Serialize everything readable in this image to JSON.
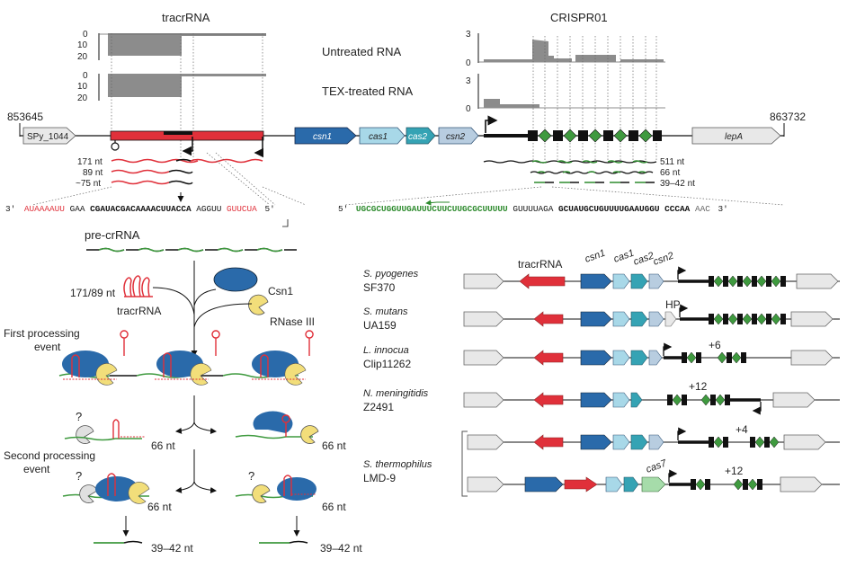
{
  "header": {
    "tracr_title": "tracrRNA",
    "crispr_title": "CRISPR01",
    "untreated": "Untreated RNA",
    "tex": "TEX-treated RNA"
  },
  "tracks": {
    "left_ticks": [
      "0",
      "10",
      "20"
    ],
    "right_ticks": [
      "3",
      "0"
    ]
  },
  "locus": {
    "coord_left": "853645",
    "coord_right": "863732",
    "genes": {
      "spy": "SPy_1044",
      "csn1": "csn1",
      "cas1": "cas1",
      "cas2": "cas2",
      "csn2": "csn2",
      "lepA": "lepA"
    },
    "tracr_sizes": [
      "171 nt",
      "89 nt",
      "~75 nt"
    ],
    "cr_sizes": [
      "511 nt",
      "66 nt",
      "39–42 nt"
    ]
  },
  "sequences": {
    "left_prime3": "3′",
    "left_red": "AUAAAAUU",
    "left_plain": "GAA",
    "left_bold": "CGAUACGACAAAACUUACCA",
    "left_tail_black": "AGGUU",
    "left_tail_red": "GUUCUA",
    "left_prime5": "5′",
    "right_prime5": "5′",
    "right_green": "UGCGCUGGUUGAUUUCUUCUUGCGCUUUUU",
    "right_plain": "GUUUUAGA",
    "right_bold": "GCUAUGCUGUUUUGAAUGGU",
    "right_plain2": "CCCAA",
    "right_end": "AAC",
    "right_prime3": "3′"
  },
  "pathway": {
    "pre_crrna": "pre-crRNA",
    "tracr_label_a": "171/89 nt",
    "tracr_label_b": "tracrRNA",
    "csn1": "Csn1",
    "rnase": "RNase III",
    "first_a": "First processing",
    "first_b": "event",
    "second_a": "Second processing",
    "second_b": "event",
    "q": "?",
    "n66": "66 nt",
    "n3942": "39–42 nt"
  },
  "orgs": {
    "header": {
      "tracr": "tracrRNA",
      "csn1": "csn1",
      "cas1": "cas1",
      "cas2": "cas2",
      "csn2": "csn2"
    },
    "list": [
      {
        "species": "S. pyogenes",
        "strain": "SF370"
      },
      {
        "species": "S. mutans",
        "strain": "UA159"
      },
      {
        "species": "L. innocua",
        "strain": "Clip11262"
      },
      {
        "species": "N. meningitidis",
        "strain": "Z2491"
      },
      {
        "species": "S. thermophilus",
        "strain": "LMD-9"
      }
    ],
    "annotations": {
      "hp": "HP",
      "plus6": "+6",
      "plus12": "+12",
      "plus4": "+4",
      "plus12b": "+12",
      "cas7": "cas7"
    }
  },
  "colors": {
    "red": "#e0303a",
    "dark_blue": "#2a6aaa",
    "light_blue": "#a8d8e8",
    "teal": "#35a3b4",
    "green": "#3f9a3f",
    "gray_box": "#e8e8e8"
  }
}
